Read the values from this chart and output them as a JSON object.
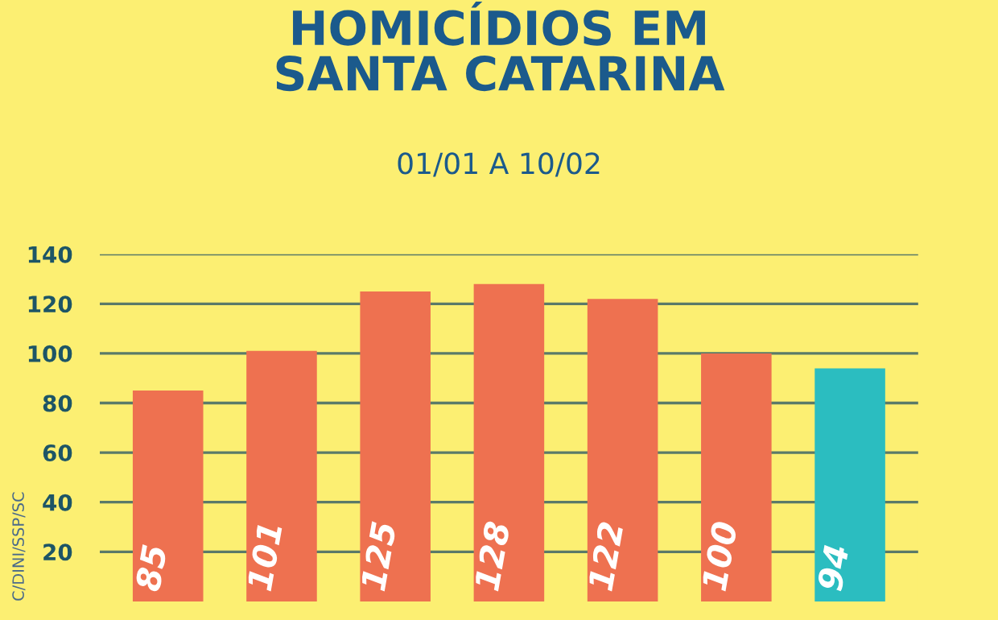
{
  "chart_data": {
    "type": "bar",
    "title": "HOMICÍDIOS EM\nSANTA CATARINA",
    "subtitle": "01/01 A 10/02",
    "categories": [
      null,
      null,
      null,
      null,
      null,
      null,
      null
    ],
    "values": [
      85,
      101,
      125,
      128,
      122,
      100,
      94
    ],
    "colors": [
      "#ee7150",
      "#ee7150",
      "#ee7150",
      "#ee7150",
      "#ee7150",
      "#ee7150",
      "#2bbdc0"
    ],
    "data_labels": true,
    "ylim": [
      0,
      140
    ],
    "yticks": [
      20,
      40,
      60,
      80,
      100,
      120,
      140
    ],
    "grid": "y",
    "annotations": [
      "C/DINI/SSP/SC"
    ]
  }
}
